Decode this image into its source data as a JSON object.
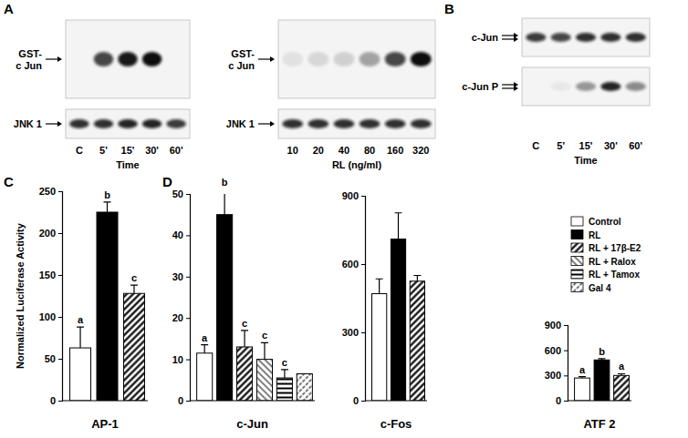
{
  "chart_data": [
    {
      "type": "blot",
      "panel": "A",
      "categories": [
        "C",
        "5'",
        "15'",
        "30'",
        "60'"
      ],
      "x_label": "Time",
      "rows": [
        {
          "label": [
            "GST-",
            "c Jun"
          ],
          "values": [
            0,
            0.75,
            0.95,
            1,
            0
          ]
        },
        {
          "label": [
            "JNK 1"
          ],
          "values": [
            0.85,
            0.85,
            0.9,
            0.9,
            0.8
          ]
        }
      ]
    },
    {
      "type": "blot",
      "categories": [
        "10",
        "20",
        "40",
        "80",
        "160",
        "320"
      ],
      "x_label": "RL (ng/ml)",
      "rows": [
        {
          "label": [
            "GST-",
            "c Jun"
          ],
          "values": [
            0.08,
            0.12,
            0.15,
            0.35,
            0.75,
            1
          ]
        },
        {
          "label": [
            "JNK 1"
          ],
          "values": [
            0.85,
            0.85,
            0.85,
            0.85,
            0.85,
            0.85
          ]
        }
      ]
    },
    {
      "type": "blot",
      "panel": "B",
      "categories": [
        "C",
        "5'",
        "15'",
        "30'",
        "60'"
      ],
      "x_label": "Time",
      "rows": [
        {
          "label": [
            "c-Jun"
          ],
          "values": [
            0.8,
            0.75,
            0.85,
            0.85,
            0.85
          ]
        },
        {
          "label": [
            "c-Jun P"
          ],
          "values": [
            0,
            0.05,
            0.4,
            0.9,
            0.45
          ]
        }
      ]
    },
    {
      "type": "bar",
      "panel": "C",
      "x_label": "AP-1",
      "y_label": "Normalized Luciferase Activity",
      "ylim": [
        0,
        250
      ],
      "yticks": [
        0,
        50,
        100,
        150,
        200,
        250
      ],
      "values": [
        63,
        225,
        128
      ],
      "errors": [
        25,
        12,
        10
      ],
      "letters": [
        "a",
        "b",
        "c"
      ],
      "colors": [
        "#ffffff",
        "#000000",
        "#ffffff"
      ]
    },
    {
      "type": "bar",
      "panel": "D",
      "x_label": "c-Jun",
      "ylim": [
        0,
        50
      ],
      "yticks": [
        0,
        10,
        20,
        30,
        40,
        50
      ],
      "categories": [
        "Control",
        "RL",
        "RL + 17β-E2",
        "RL + Ralox",
        "RL + Tamox",
        "Gal 4"
      ],
      "legend": "upper right",
      "values": [
        11.5,
        45,
        13,
        10,
        5.5,
        6.5
      ],
      "errors": [
        2,
        6,
        4,
        4,
        2,
        null
      ],
      "letters": [
        "a",
        "b",
        "c",
        "c",
        "c",
        null
      ],
      "colors": [
        "#ffffff",
        "#000000",
        "#ffffff",
        "#ffffff",
        "#ffffff",
        "#ffffff"
      ]
    },
    {
      "type": "bar",
      "x_label": "c-Fos",
      "ylim": [
        0,
        900
      ],
      "yticks": [
        0,
        300,
        600,
        900
      ],
      "values": [
        470,
        710,
        525
      ],
      "errors": [
        65,
        115,
        25
      ],
      "colors": [
        "#ffffff",
        "#000000",
        "#ffffff"
      ]
    },
    {
      "type": "bar",
      "x_label": "ATF 2",
      "ylim": [
        0,
        900
      ],
      "yticks": [
        0,
        300,
        600,
        900
      ],
      "values": [
        270,
        485,
        300
      ],
      "errors": [
        15,
        15,
        20
      ],
      "letters": [
        "a",
        "b",
        "a"
      ],
      "colors": [
        "#ffffff",
        "#000000",
        "#ffffff"
      ]
    }
  ]
}
